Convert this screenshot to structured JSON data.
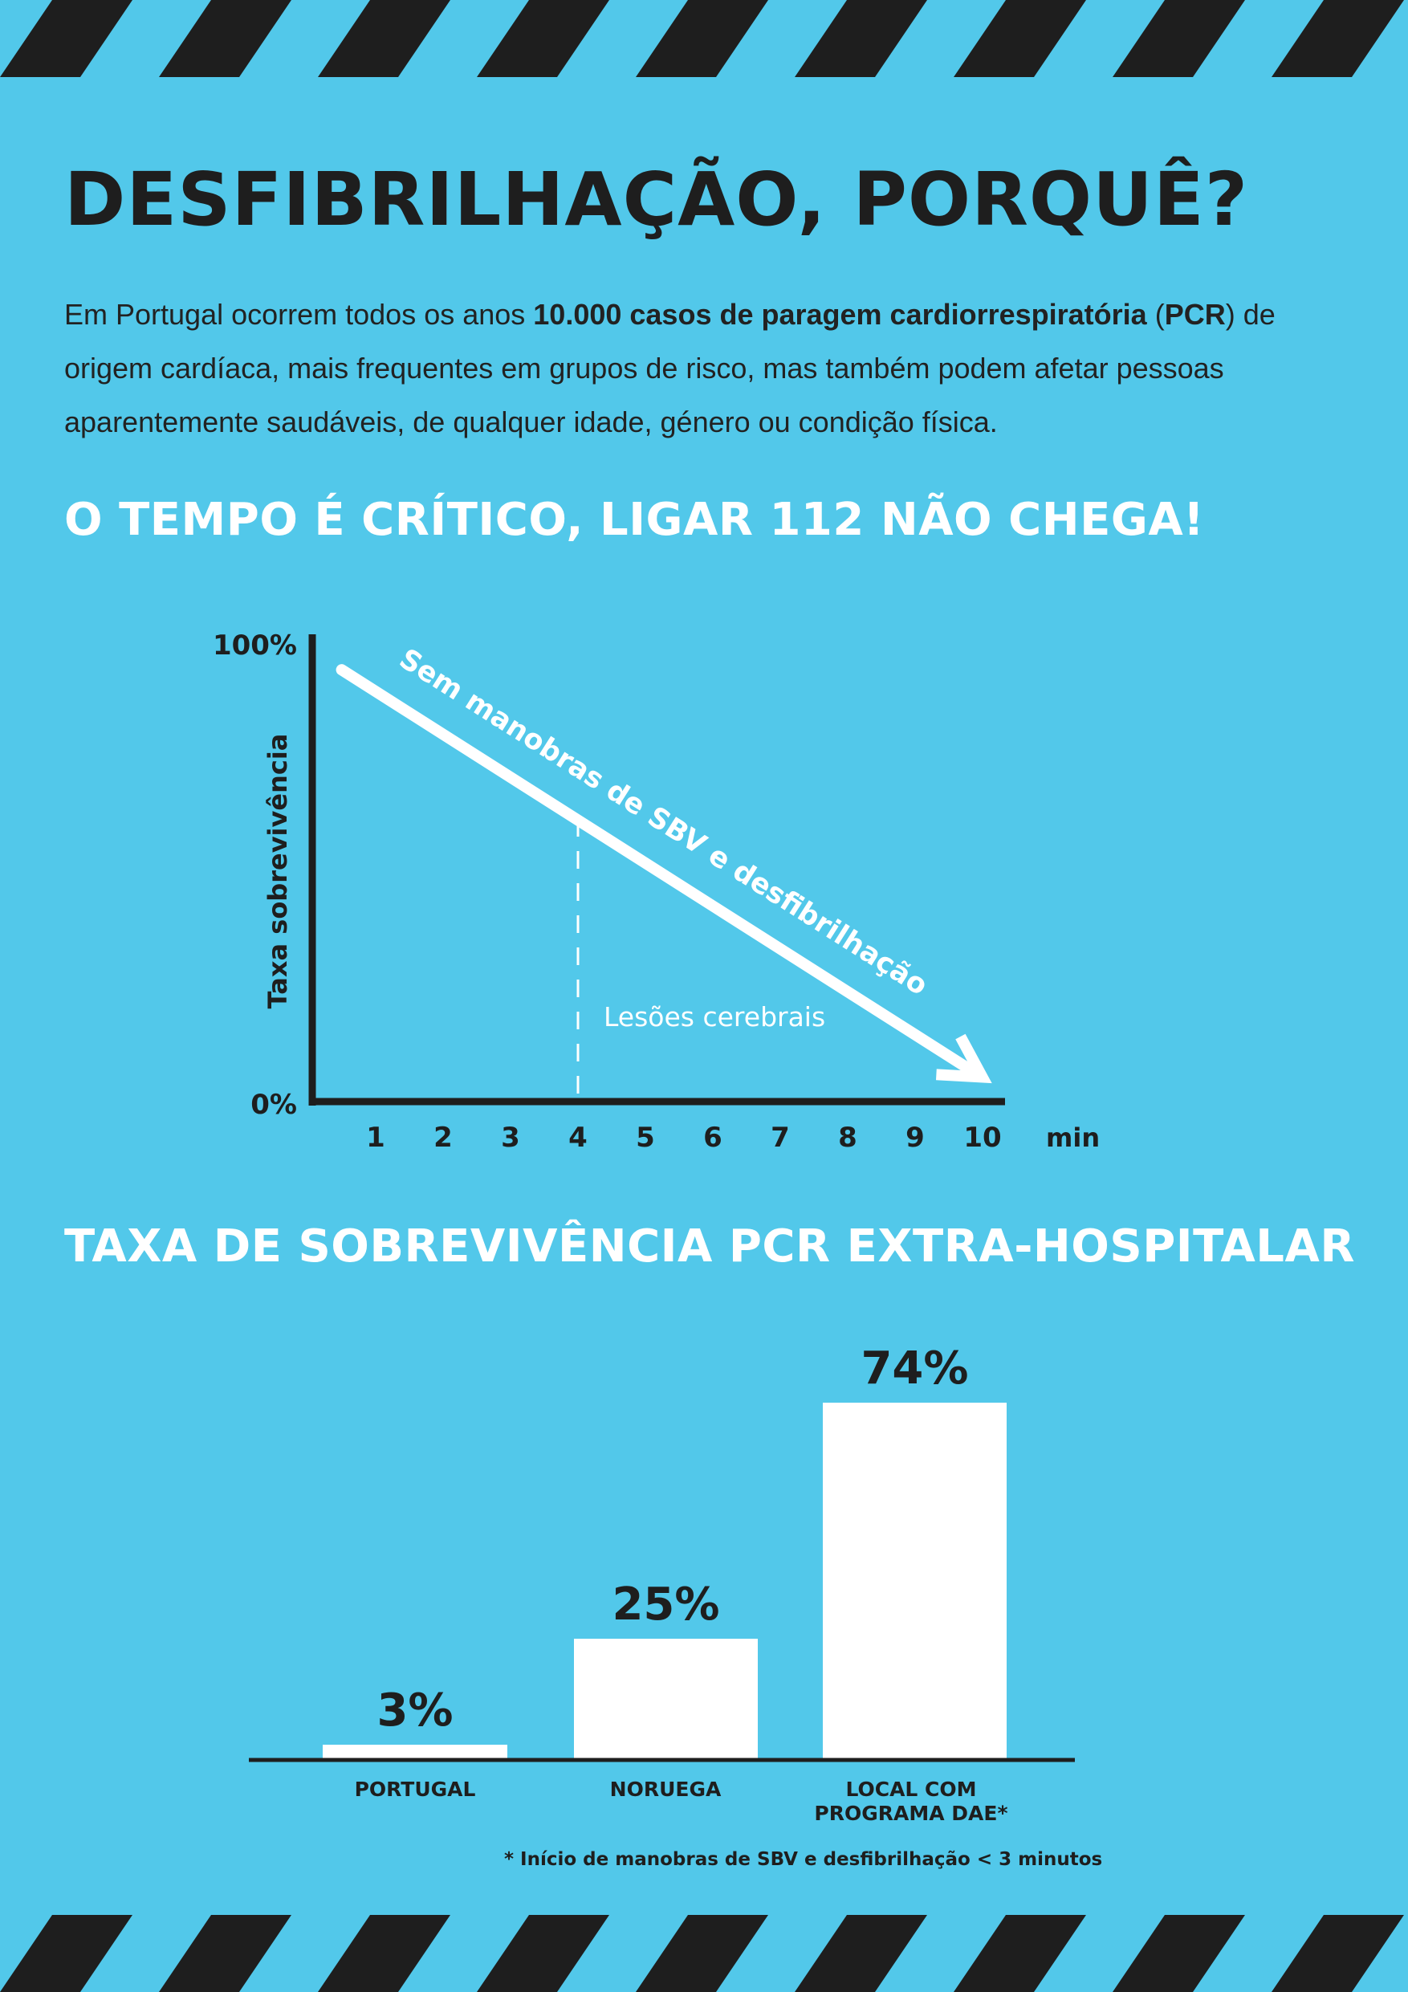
{
  "page": {
    "title": "DESFIBRILHAÇÃO, PORQUÊ?",
    "intro": {
      "pre": "Em Portugal ocorrem todos os anos ",
      "bold": "10.000 casos de paragem cardiorrespiratória",
      "mid": " (",
      "bold2": "PCR",
      "post": ") de origem cardíaca, mais frequentes em grupos de risco, mas também podem afetar pessoas aparentemente saudáveis, de qualquer idade, género ou condição física."
    },
    "section1_title": "O TEMPO É CRÍTICO, LIGAR 112 NÃO CHEGA!",
    "section2_title": "TAXA DE SOBREVIVÊNCIA PCR EXTRA-HOSPITALAR",
    "footnote": "* Início de manobras de SBV e desfibrilhação < 3 minutos"
  },
  "colors": {
    "background": "#52c8ea",
    "dark": "#1e1e1e",
    "white": "#ffffff"
  },
  "chart_data": [
    {
      "type": "line",
      "ylabel": "Taxa sobrevivência",
      "xlabel": "min",
      "y_ticks": [
        "100%",
        "0%"
      ],
      "x_ticks": [
        "1",
        "2",
        "3",
        "4",
        "5",
        "6",
        "7",
        "8",
        "9",
        "10"
      ],
      "ylim": [
        0,
        100
      ],
      "xlim": [
        0,
        10
      ],
      "series": [
        {
          "name": "Sem manobras de SBV e desfibrilhação",
          "x": [
            0.4,
            9.9
          ],
          "y": [
            94,
            5
          ]
        }
      ],
      "annotations": [
        {
          "text": "Lesões cerebrais",
          "x": 4
        }
      ]
    },
    {
      "type": "bar",
      "categories": [
        "PORTUGAL",
        "NORUEGA",
        "LOCAL COM PROGRAMA DAE*"
      ],
      "values": [
        3,
        25,
        74
      ],
      "labels": [
        "3%",
        "25%",
        "74%"
      ]
    }
  ]
}
